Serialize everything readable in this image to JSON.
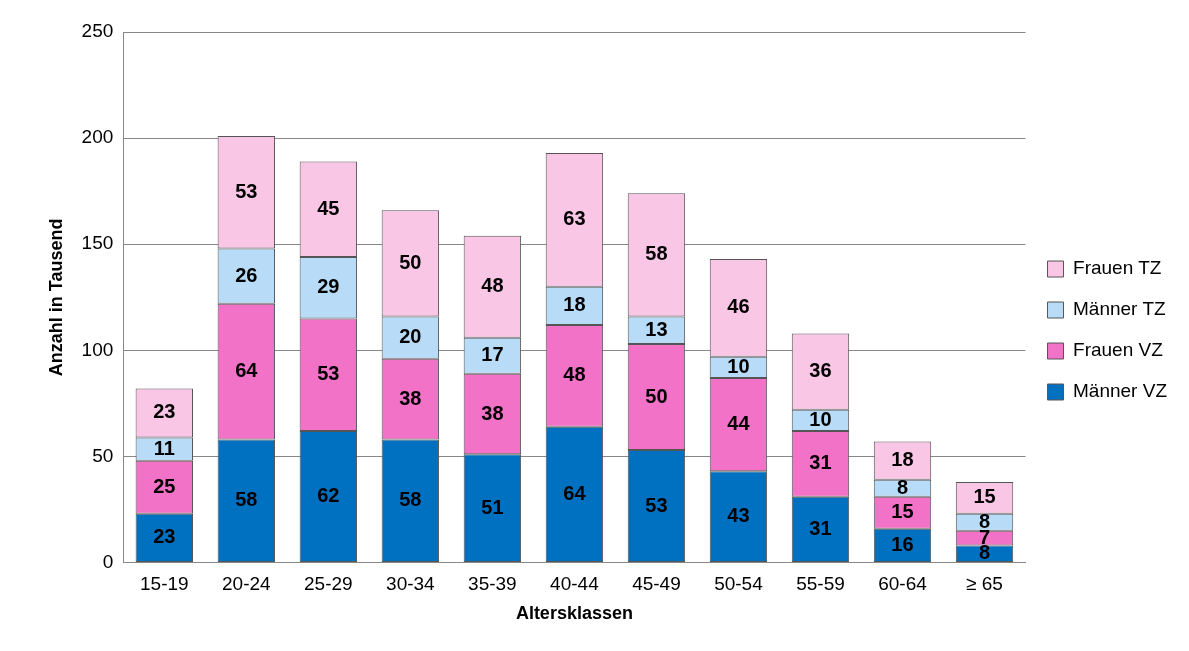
{
  "chart_data": {
    "type": "bar",
    "stacked": true,
    "xlabel": "Altersklassen",
    "ylabel": "Anzahl in Tausend",
    "categories": [
      "15-19",
      "20-24",
      "25-29",
      "30-34",
      "35-39",
      "40-44",
      "45-49",
      "50-54",
      "55-59",
      "60-64",
      "≥ 65"
    ],
    "series": [
      {
        "name": "Männer VZ",
        "color": "#0070c0",
        "values": [
          23,
          58,
          62,
          58,
          51,
          64,
          53,
          43,
          31,
          16,
          8
        ]
      },
      {
        "name": "Frauen VZ",
        "color": "#f272c8",
        "values": [
          25,
          64,
          53,
          38,
          38,
          48,
          50,
          44,
          31,
          15,
          7
        ]
      },
      {
        "name": "Männer TZ",
        "color": "#b8dcf8",
        "values": [
          11,
          26,
          29,
          20,
          17,
          18,
          13,
          10,
          10,
          8,
          8
        ]
      },
      {
        "name": "Frauen TZ",
        "color": "#f9c6e6",
        "values": [
          23,
          53,
          45,
          50,
          48,
          63,
          58,
          46,
          36,
          18,
          15
        ]
      }
    ],
    "ylim": [
      0,
      250
    ],
    "yticks": [
      0,
      50,
      100,
      150,
      200,
      250
    ],
    "grid": "y",
    "legend": "right",
    "data_labels": true
  }
}
